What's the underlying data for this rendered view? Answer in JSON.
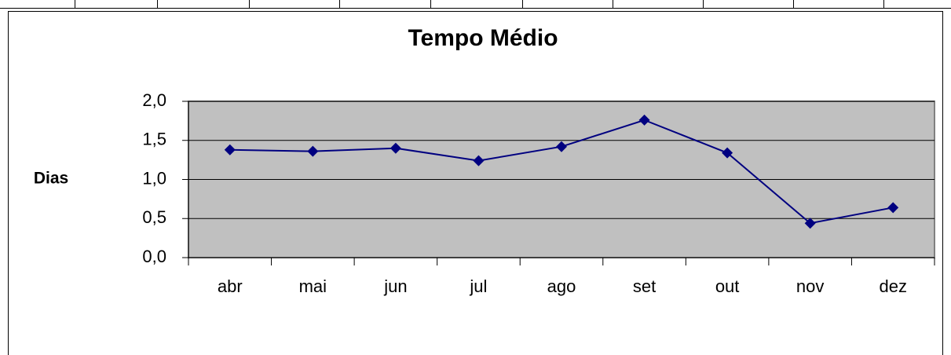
{
  "chart_data": {
    "type": "line",
    "title": "Tempo Médio",
    "y_label": "Dias",
    "categories": [
      "abr",
      "mai",
      "jun",
      "jul",
      "ago",
      "set",
      "out",
      "nov",
      "dez"
    ],
    "series": [
      {
        "name": "Tempo Médio",
        "color": "#000080",
        "values": [
          1.38,
          1.36,
          1.4,
          1.24,
          1.42,
          1.76,
          1.34,
          0.44,
          0.64
        ]
      }
    ],
    "ylim": [
      0,
      2
    ],
    "yticks": [
      {
        "value": 0,
        "label": "0,0"
      },
      {
        "value": 0.5,
        "label": "0,5"
      },
      {
        "value": 1,
        "label": "1,0"
      },
      {
        "value": 1.5,
        "label": "1,5"
      },
      {
        "value": 2,
        "label": "2,0"
      }
    ],
    "grid": true,
    "plot_background": "#c0c0c0"
  }
}
